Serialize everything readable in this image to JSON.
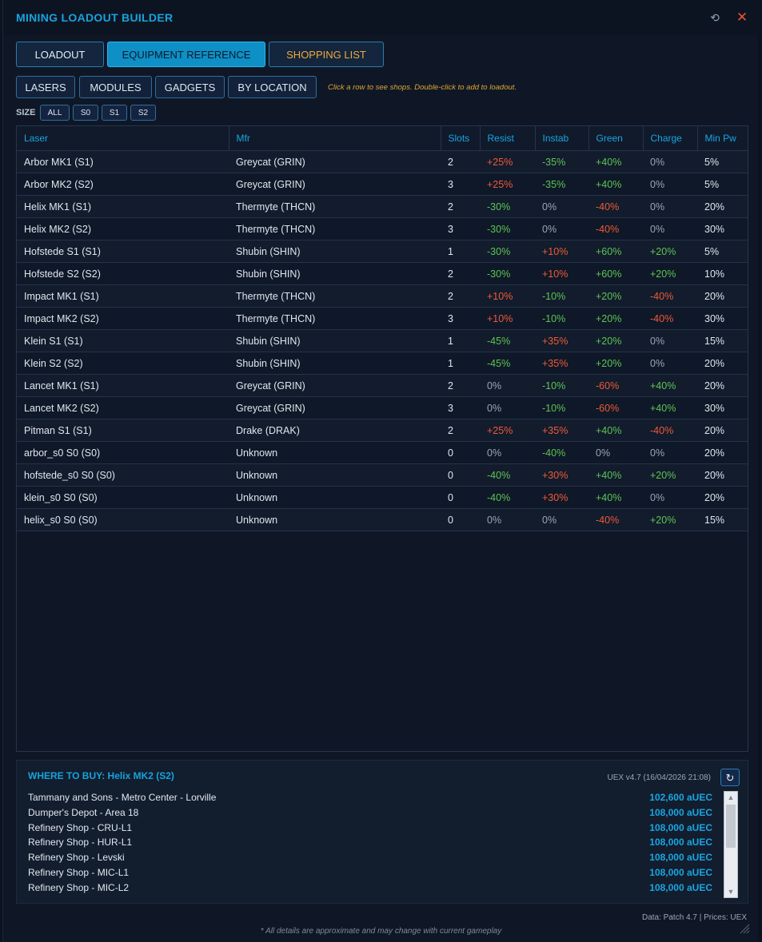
{
  "title": "MINING LOADOUT BUILDER",
  "window_controls": {
    "restore": "⟲",
    "close": "✕"
  },
  "main_tabs": [
    {
      "label": "LOADOUT"
    },
    {
      "label": "EQUIPMENT REFERENCE"
    },
    {
      "label": "SHOPPING LIST"
    }
  ],
  "category_tabs": [
    {
      "label": "LASERS"
    },
    {
      "label": "MODULES"
    },
    {
      "label": "GADGETS"
    },
    {
      "label": "BY LOCATION"
    }
  ],
  "hint": "Click a row to see shops. Double-click to add to loadout.",
  "size_filter": {
    "label": "SIZE",
    "options": [
      "ALL",
      "S0",
      "S1",
      "S2"
    ]
  },
  "table": {
    "headers": [
      "Laser",
      "Mfr",
      "Slots",
      "Resist",
      "Instab",
      "Green",
      "Charge",
      "Min Pw"
    ],
    "rows": [
      [
        "Arbor MK1 (S1)",
        "Greycat (GRIN)",
        "2",
        "+25%",
        "-35%",
        "+40%",
        "0%",
        "5%"
      ],
      [
        "Arbor MK2 (S2)",
        "Greycat (GRIN)",
        "3",
        "+25%",
        "-35%",
        "+40%",
        "0%",
        "5%"
      ],
      [
        "Helix MK1 (S1)",
        "Thermyte (THCN)",
        "2",
        "-30%",
        "0%",
        "-40%",
        "0%",
        "20%"
      ],
      [
        "Helix MK2 (S2)",
        "Thermyte (THCN)",
        "3",
        "-30%",
        "0%",
        "-40%",
        "0%",
        "30%"
      ],
      [
        "Hofstede S1 (S1)",
        "Shubin (SHIN)",
        "1",
        "-30%",
        "+10%",
        "+60%",
        "+20%",
        "5%"
      ],
      [
        "Hofstede S2 (S2)",
        "Shubin (SHIN)",
        "2",
        "-30%",
        "+10%",
        "+60%",
        "+20%",
        "10%"
      ],
      [
        "Impact MK1 (S1)",
        "Thermyte (THCN)",
        "2",
        "+10%",
        "-10%",
        "+20%",
        "-40%",
        "20%"
      ],
      [
        "Impact MK2 (S2)",
        "Thermyte (THCN)",
        "3",
        "+10%",
        "-10%",
        "+20%",
        "-40%",
        "30%"
      ],
      [
        "Klein S1 (S1)",
        "Shubin (SHIN)",
        "1",
        "-45%",
        "+35%",
        "+20%",
        "0%",
        "15%"
      ],
      [
        "Klein S2 (S2)",
        "Shubin (SHIN)",
        "1",
        "-45%",
        "+35%",
        "+20%",
        "0%",
        "20%"
      ],
      [
        "Lancet MK1 (S1)",
        "Greycat (GRIN)",
        "2",
        "0%",
        "-10%",
        "-60%",
        "+40%",
        "20%"
      ],
      [
        "Lancet MK2 (S2)",
        "Greycat (GRIN)",
        "3",
        "0%",
        "-10%",
        "-60%",
        "+40%",
        "30%"
      ],
      [
        "Pitman S1 (S1)",
        "Drake (DRAK)",
        "2",
        "+25%",
        "+35%",
        "+40%",
        "-40%",
        "20%"
      ],
      [
        "arbor_s0 S0 (S0)",
        "Unknown",
        "0",
        "0%",
        "-40%",
        "0%",
        "0%",
        "20%"
      ],
      [
        "hofstede_s0 S0 (S0)",
        "Unknown",
        "0",
        "-40%",
        "+30%",
        "+40%",
        "+20%",
        "20%"
      ],
      [
        "klein_s0 S0 (S0)",
        "Unknown",
        "0",
        "-40%",
        "+30%",
        "+40%",
        "0%",
        "20%"
      ],
      [
        "helix_s0 S0 (S0)",
        "Unknown",
        "0",
        "0%",
        "0%",
        "-40%",
        "+20%",
        "15%"
      ]
    ]
  },
  "where_to_buy": {
    "title": "WHERE TO BUY: Helix MK2 (S2)",
    "uex_version": "UEX v4.7 (16/04/2026 21:08)",
    "refresh_icon": "↻",
    "shops": [
      {
        "name": "Tammany and Sons - Metro Center - Lorville",
        "price": "102,600 aUEC"
      },
      {
        "name": "Dumper's Depot - Area 18",
        "price": "108,000 aUEC"
      },
      {
        "name": "Refinery Shop - CRU-L1",
        "price": "108,000 aUEC"
      },
      {
        "name": "Refinery Shop - HUR-L1",
        "price": "108,000 aUEC"
      },
      {
        "name": "Refinery Shop - Levski",
        "price": "108,000 aUEC"
      },
      {
        "name": "Refinery Shop - MIC-L1",
        "price": "108,000 aUEC"
      },
      {
        "name": "Refinery Shop - MIC-L2",
        "price": "108,000 aUEC"
      }
    ]
  },
  "footer": {
    "data_source": "Data: Patch 4.7 | Prices: UEX",
    "disclaimer": "* All details are approximate and may change with current gameplay"
  },
  "colors": {
    "accent": "#17a3dd",
    "positive": "#5ec452",
    "negative": "#ee5a36",
    "warning": "#f2a83a"
  }
}
